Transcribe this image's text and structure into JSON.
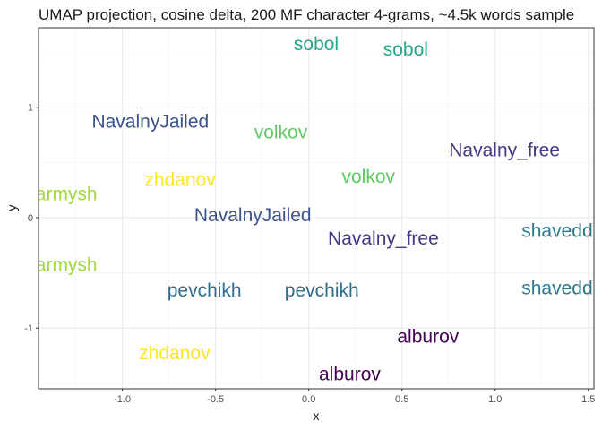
{
  "chart_data": {
    "type": "scatter",
    "title": "UMAP projection, cosine delta, 200 MF character 4-grams, ~4.5k words sample",
    "xlabel": "x",
    "ylabel": "y",
    "xlim": [
      -1.45,
      1.53
    ],
    "ylim": [
      -1.55,
      1.72
    ],
    "xticks": [
      -1.0,
      -0.5,
      0.0,
      0.5,
      1.0,
      1.5
    ],
    "xtick_labels": [
      "-1.0",
      "-0.5",
      "0.0",
      "0.5",
      "1.0",
      "1.5"
    ],
    "yticks": [
      -1,
      0,
      1
    ],
    "ytick_labels": [
      "-1",
      "0",
      "1"
    ],
    "grid": true,
    "legend": "none",
    "points": [
      {
        "label": "sobol",
        "x": 0.04,
        "y": 1.57,
        "color": "#22a884"
      },
      {
        "label": "sobol",
        "x": 0.52,
        "y": 1.52,
        "color": "#22a884"
      },
      {
        "label": "NavalnyJailed",
        "x": -0.85,
        "y": 0.87,
        "color": "#3b528b"
      },
      {
        "label": "volkov",
        "x": -0.15,
        "y": 0.77,
        "color": "#5ec962"
      },
      {
        "label": "Navalny_free",
        "x": 1.05,
        "y": 0.61,
        "color": "#443983"
      },
      {
        "label": "armysh",
        "x": -1.3,
        "y": 0.21,
        "color": "#a0da39"
      },
      {
        "label": "zhdanov",
        "x": -0.69,
        "y": 0.34,
        "color": "#fde725"
      },
      {
        "label": "volkov",
        "x": 0.32,
        "y": 0.37,
        "color": "#5ec962"
      },
      {
        "label": "NavalnyJailed",
        "x": -0.3,
        "y": 0.02,
        "color": "#3b528b"
      },
      {
        "label": "Navalny_free",
        "x": 0.4,
        "y": -0.19,
        "color": "#443983"
      },
      {
        "label": "shavedding",
        "x": 1.4,
        "y": -0.12,
        "color": "#2a788e"
      },
      {
        "label": "armysh",
        "x": -1.3,
        "y": -0.43,
        "color": "#a0da39"
      },
      {
        "label": "pevchikh",
        "x": -0.56,
        "y": -0.66,
        "color": "#2f6c8e"
      },
      {
        "label": "pevchikh",
        "x": 0.07,
        "y": -0.66,
        "color": "#2f6c8e"
      },
      {
        "label": "shaveddinq",
        "x": 1.4,
        "y": -0.64,
        "color": "#2a788e"
      },
      {
        "label": "alburov",
        "x": 0.64,
        "y": -1.08,
        "color": "#440154"
      },
      {
        "label": "zhdanov",
        "x": -0.72,
        "y": -1.23,
        "color": "#fde725"
      },
      {
        "label": "alburov",
        "x": 0.22,
        "y": -1.42,
        "color": "#440154"
      }
    ]
  }
}
